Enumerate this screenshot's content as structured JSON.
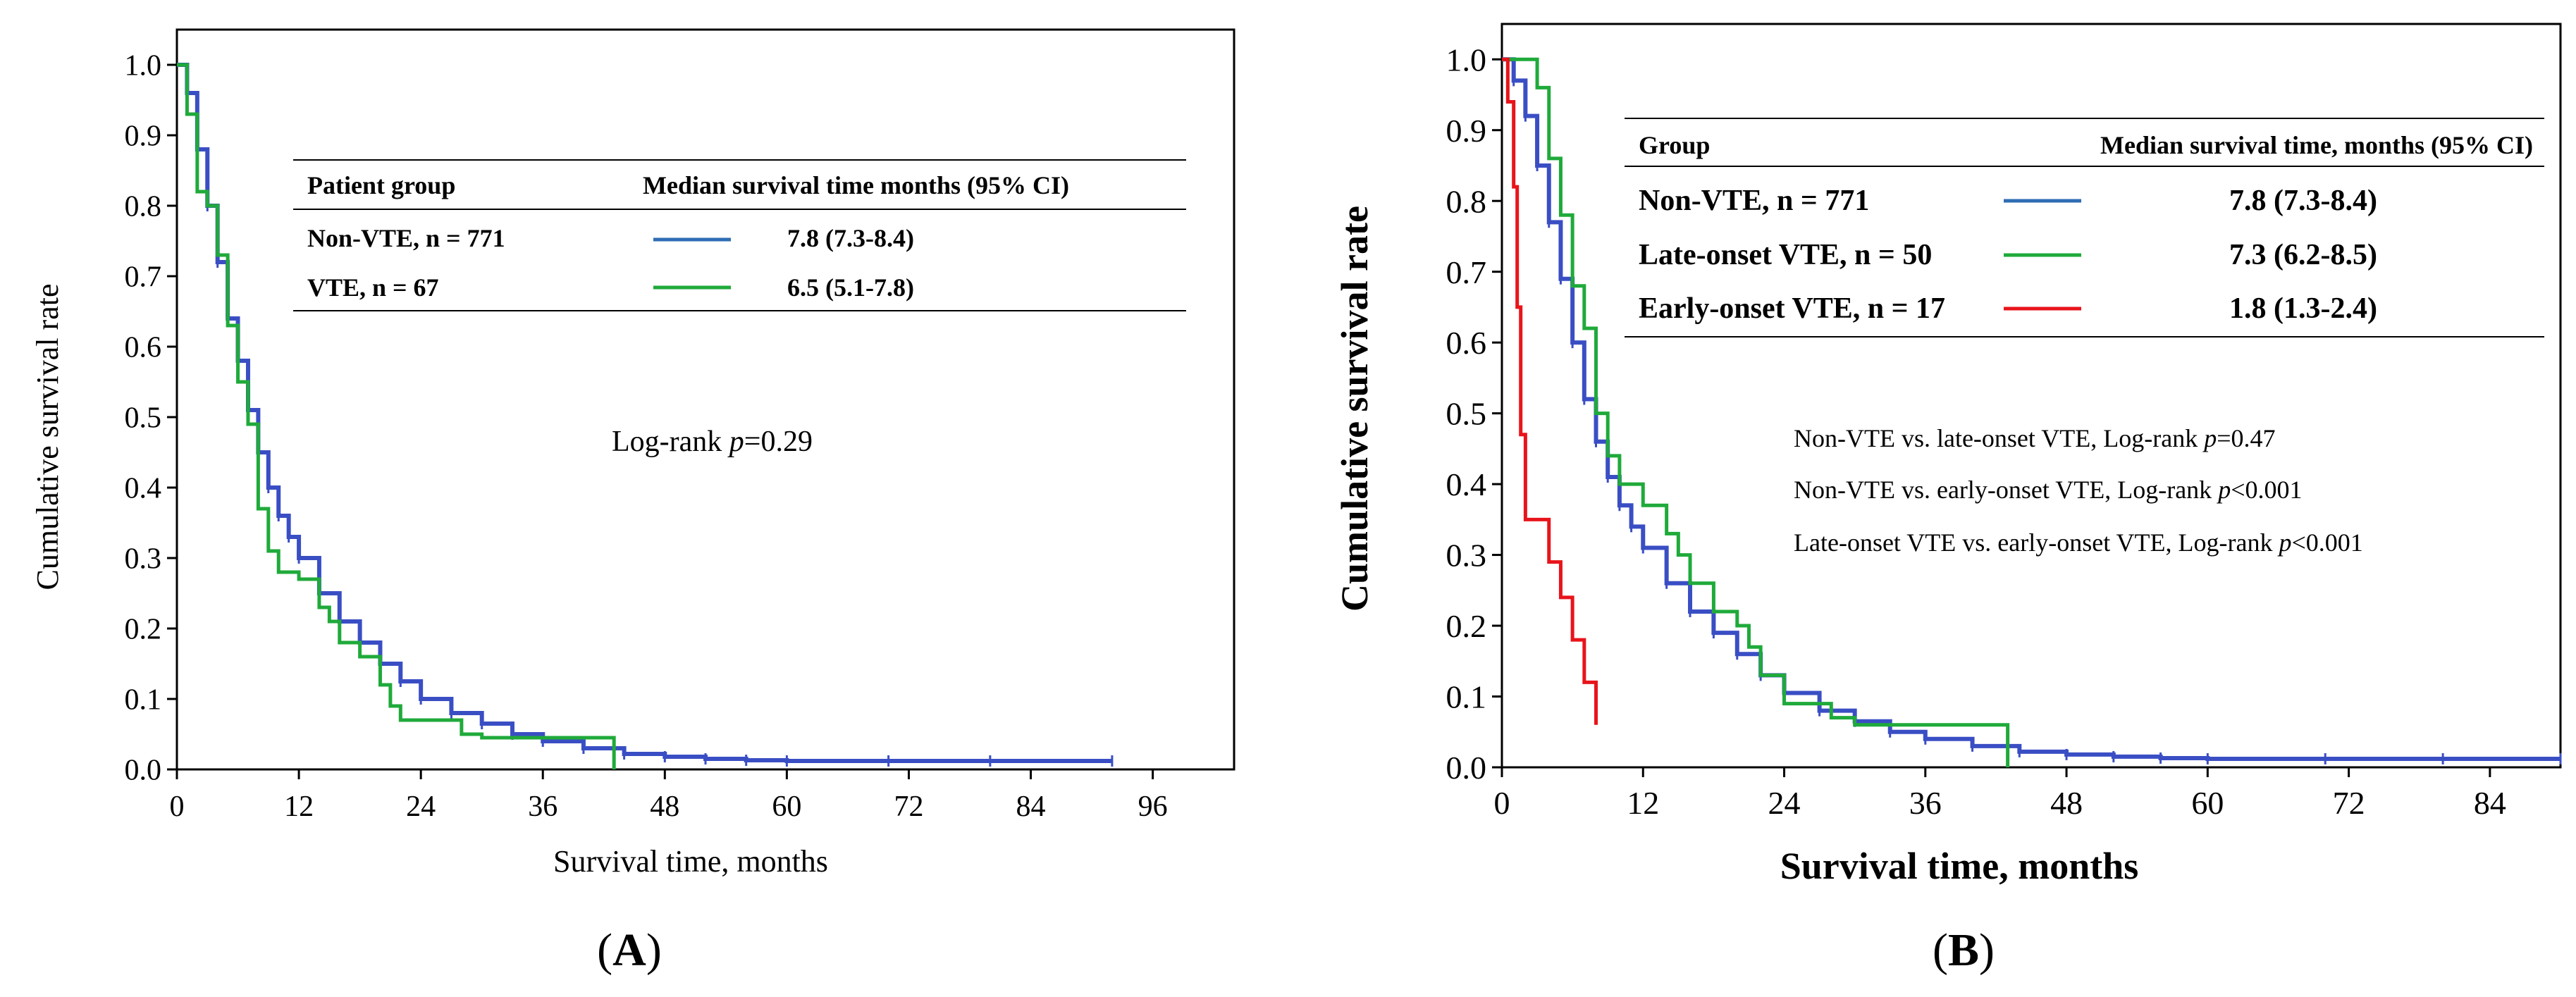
{
  "chart_data": [
    {
      "type": "line",
      "subtype": "kaplan-meier",
      "panel_label": "A",
      "xlabel": "Survival time, months",
      "ylabel": "Cumulative survival rate",
      "xlim": [
        0,
        104
      ],
      "ylim": [
        0,
        1.05
      ],
      "x_ticks": [
        0,
        12,
        24,
        36,
        48,
        60,
        72,
        84,
        96
      ],
      "y_ticks": [
        "0.0",
        "0.1",
        "0.2",
        "0.3",
        "0.4",
        "0.5",
        "0.6",
        "0.7",
        "0.8",
        "0.9",
        "1.0"
      ],
      "legend": {
        "header_group": "Patient group",
        "header_median": "Median survival time months (95% CI)",
        "rows": [
          {
            "label": "Non-VTE, n = 771",
            "color": "#2e6db4",
            "median": "7.8 (7.3-8.4)"
          },
          {
            "label": "VTE, n = 67",
            "color": "#1faa3a",
            "median": "6.5 (5.1-7.8)"
          }
        ]
      },
      "annotations": [
        {
          "prefix": "Log-rank ",
          "italic": "p",
          "suffix": "=0.29"
        }
      ],
      "series": [
        {
          "name": "Non-VTE, n = 771",
          "color": "#3a4ec4",
          "x": [
            0,
            1,
            2,
            3,
            4,
            5,
            6,
            7,
            8,
            9,
            10,
            11,
            12,
            14,
            16,
            18,
            20,
            22,
            24,
            27,
            30,
            33,
            36,
            40,
            44,
            48,
            52,
            56,
            60,
            70,
            80,
            92
          ],
          "y": [
            1.0,
            0.96,
            0.88,
            0.8,
            0.72,
            0.64,
            0.58,
            0.51,
            0.45,
            0.4,
            0.36,
            0.33,
            0.3,
            0.25,
            0.21,
            0.18,
            0.15,
            0.125,
            0.1,
            0.08,
            0.065,
            0.05,
            0.04,
            0.03,
            0.022,
            0.018,
            0.015,
            0.013,
            0.012,
            0.012,
            0.012,
            0.012
          ]
        },
        {
          "name": "VTE, n = 67",
          "color": "#1faa3a",
          "x": [
            0,
            1,
            2,
            3,
            4,
            5,
            6,
            7,
            8,
            9,
            10,
            12,
            14,
            15,
            16,
            18,
            20,
            21,
            22,
            24,
            28,
            30,
            43
          ],
          "y": [
            1.0,
            0.93,
            0.82,
            0.8,
            0.73,
            0.63,
            0.55,
            0.49,
            0.37,
            0.31,
            0.28,
            0.27,
            0.23,
            0.21,
            0.18,
            0.16,
            0.12,
            0.09,
            0.07,
            0.07,
            0.05,
            0.045,
            0.0
          ]
        }
      ]
    },
    {
      "type": "line",
      "subtype": "kaplan-meier",
      "panel_label": "B",
      "xlabel": "Survival time, months",
      "ylabel": "Cumulative survival rate",
      "xlim": [
        0,
        90
      ],
      "ylim": [
        0,
        1.05
      ],
      "x_ticks": [
        0,
        12,
        24,
        36,
        48,
        60,
        72,
        84
      ],
      "y_ticks": [
        "0.0",
        "0.1",
        "0.2",
        "0.3",
        "0.4",
        "0.5",
        "0.6",
        "0.7",
        "0.8",
        "0.9",
        "1.0"
      ],
      "legend": {
        "header_group": "Group",
        "header_median": "Median survival time, months (95% CI)",
        "rows": [
          {
            "label": "Non-VTE, n = 771",
            "color": "#2e6db4",
            "median": "7.8 (7.3-8.4)"
          },
          {
            "label": "Late-onset VTE, n = 50",
            "color": "#1faa3a",
            "median": "7.3 (6.2-8.5)"
          },
          {
            "label": "Early-onset VTE, n = 17",
            "color": "#e8141b",
            "median": "1.8 (1.3-2.4)"
          }
        ]
      },
      "annotations": [
        {
          "prefix": "Non-VTE vs. late-onset VTE, Log-rank ",
          "italic": "p",
          "suffix": "=0.47"
        },
        {
          "prefix": "Non-VTE vs. early-onset VTE, Log-rank ",
          "italic": "p",
          "suffix": "<0.001"
        },
        {
          "prefix": "Late-onset VTE vs. early-onset VTE, Log-rank ",
          "italic": "p",
          "suffix": "<0.001"
        }
      ],
      "series": [
        {
          "name": "Non-VTE, n = 771",
          "color": "#3a4ec4",
          "x": [
            0,
            1,
            2,
            3,
            4,
            5,
            6,
            7,
            8,
            9,
            10,
            11,
            12,
            14,
            16,
            18,
            20,
            22,
            24,
            27,
            30,
            33,
            36,
            40,
            44,
            48,
            52,
            56,
            60,
            70,
            80,
            90
          ],
          "y": [
            1.0,
            0.97,
            0.92,
            0.85,
            0.77,
            0.69,
            0.6,
            0.52,
            0.46,
            0.41,
            0.37,
            0.34,
            0.31,
            0.26,
            0.22,
            0.19,
            0.16,
            0.13,
            0.105,
            0.08,
            0.065,
            0.05,
            0.04,
            0.03,
            0.022,
            0.018,
            0.015,
            0.013,
            0.012,
            0.012,
            0.012,
            0.012
          ]
        },
        {
          "name": "Late-onset VTE, n = 50",
          "color": "#1faa3a",
          "x": [
            0,
            2,
            3,
            4,
            5,
            6,
            7,
            8,
            9,
            10,
            12,
            14,
            15,
            16,
            18,
            20,
            21,
            22,
            24,
            28,
            30,
            32,
            43
          ],
          "y": [
            1.0,
            1.0,
            0.96,
            0.86,
            0.78,
            0.68,
            0.62,
            0.5,
            0.44,
            0.4,
            0.37,
            0.33,
            0.3,
            0.26,
            0.22,
            0.2,
            0.17,
            0.13,
            0.09,
            0.07,
            0.06,
            0.06,
            0.0
          ]
        },
        {
          "name": "Early-onset VTE, n = 17",
          "color": "#e8141b",
          "x": [
            0,
            0.5,
            1,
            1.3,
            1.6,
            2,
            3,
            4,
            5,
            6,
            7,
            8
          ],
          "y": [
            1.0,
            0.94,
            0.82,
            0.65,
            0.47,
            0.35,
            0.35,
            0.29,
            0.24,
            0.18,
            0.12,
            0.06
          ]
        }
      ]
    }
  ]
}
